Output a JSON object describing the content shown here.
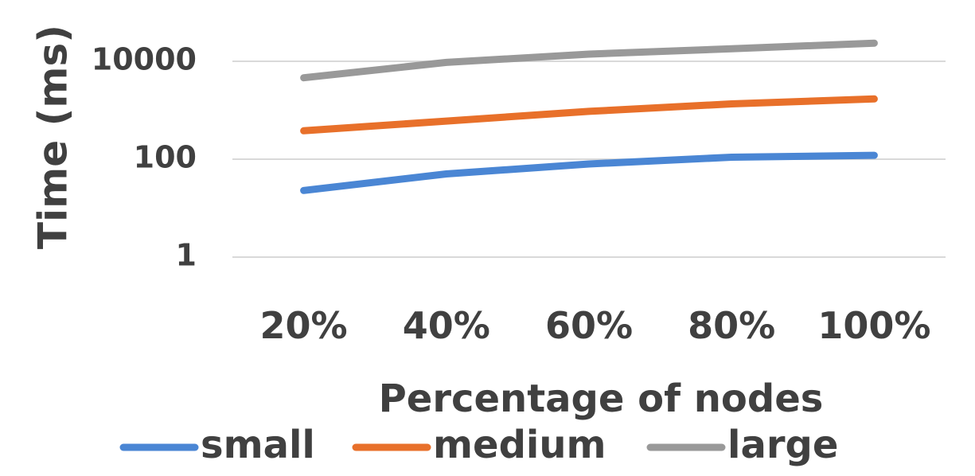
{
  "chart_data": {
    "type": "line",
    "title": "",
    "xlabel": "Percentage of nodes",
    "ylabel": "Time (ms)",
    "yscale": "log10",
    "ylim": [
      1,
      30000
    ],
    "grid": "horizontal",
    "legend_position": "bottom",
    "categories": [
      "20%",
      "40%",
      "60%",
      "80%",
      "100%"
    ],
    "yticks": [
      {
        "value": 1,
        "label": "1"
      },
      {
        "value": 100,
        "label": "100"
      },
      {
        "value": 10000,
        "label": "10000"
      }
    ],
    "series": [
      {
        "name": "small",
        "color": "#4a86d4",
        "values": [
          23,
          50,
          80,
          110,
          120
        ]
      },
      {
        "name": "medium",
        "color": "#e8702a",
        "values": [
          380,
          600,
          950,
          1350,
          1700
        ]
      },
      {
        "name": "large",
        "color": "#999999",
        "values": [
          4600,
          9500,
          14000,
          18000,
          23500
        ]
      }
    ]
  }
}
